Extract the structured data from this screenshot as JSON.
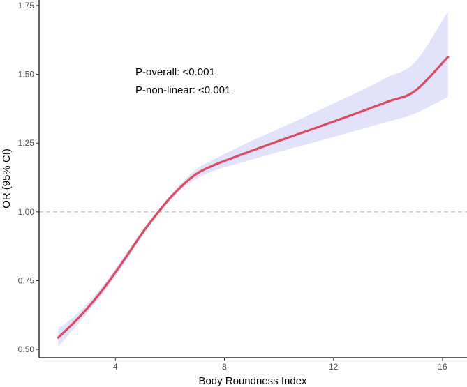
{
  "chart_data": {
    "type": "line",
    "title": "",
    "xlabel": "Body Roundness Index",
    "ylabel": "OR (95% CI)",
    "xlim": [
      1.2,
      16.9
    ],
    "ylim": [
      0.47,
      1.77
    ],
    "x_ticks": [
      4,
      8,
      12,
      16
    ],
    "x_tick_labels": [
      "4",
      "8",
      "12",
      "16"
    ],
    "y_ticks": [
      0.5,
      0.75,
      1.0,
      1.25,
      1.5,
      1.75
    ],
    "y_tick_labels": [
      "0.50",
      "0.75",
      "1.00",
      "1.25",
      "1.50",
      "1.75"
    ],
    "reference_line": {
      "y": 1.0,
      "style": "dashed",
      "color": "#bdbdbd"
    },
    "grid": false,
    "annotations": [
      "P-overall: <0.001",
      "P-non-linear: <0.001"
    ],
    "series": [
      {
        "x": [
          1.9,
          2.5,
          3.0,
          3.5,
          4.0,
          4.5,
          5.0,
          5.5,
          6.0,
          6.5,
          7.0,
          7.5,
          8.0,
          9.0,
          10.0,
          11.0,
          12.0,
          13.0,
          14.0,
          15.0,
          16.2
        ],
        "y": [
          0.543,
          0.6,
          0.653,
          0.713,
          0.78,
          0.852,
          0.925,
          0.99,
          1.05,
          1.1,
          1.14,
          1.165,
          1.185,
          1.222,
          1.258,
          1.293,
          1.328,
          1.364,
          1.401,
          1.44,
          1.563
        ],
        "lower": [
          0.51,
          0.578,
          0.636,
          0.698,
          0.766,
          0.84,
          0.916,
          0.982,
          1.041,
          1.088,
          1.122,
          1.145,
          1.162,
          1.19,
          1.218,
          1.245,
          1.272,
          1.3,
          1.328,
          1.358,
          1.418
        ],
        "upper": [
          0.573,
          0.622,
          0.67,
          0.728,
          0.793,
          0.864,
          0.935,
          0.999,
          1.059,
          1.112,
          1.158,
          1.185,
          1.21,
          1.258,
          1.302,
          1.347,
          1.394,
          1.44,
          1.49,
          1.545,
          1.728
        ],
        "line_color": "#e04a5f",
        "band_color": "#e2e2fb"
      }
    ]
  }
}
